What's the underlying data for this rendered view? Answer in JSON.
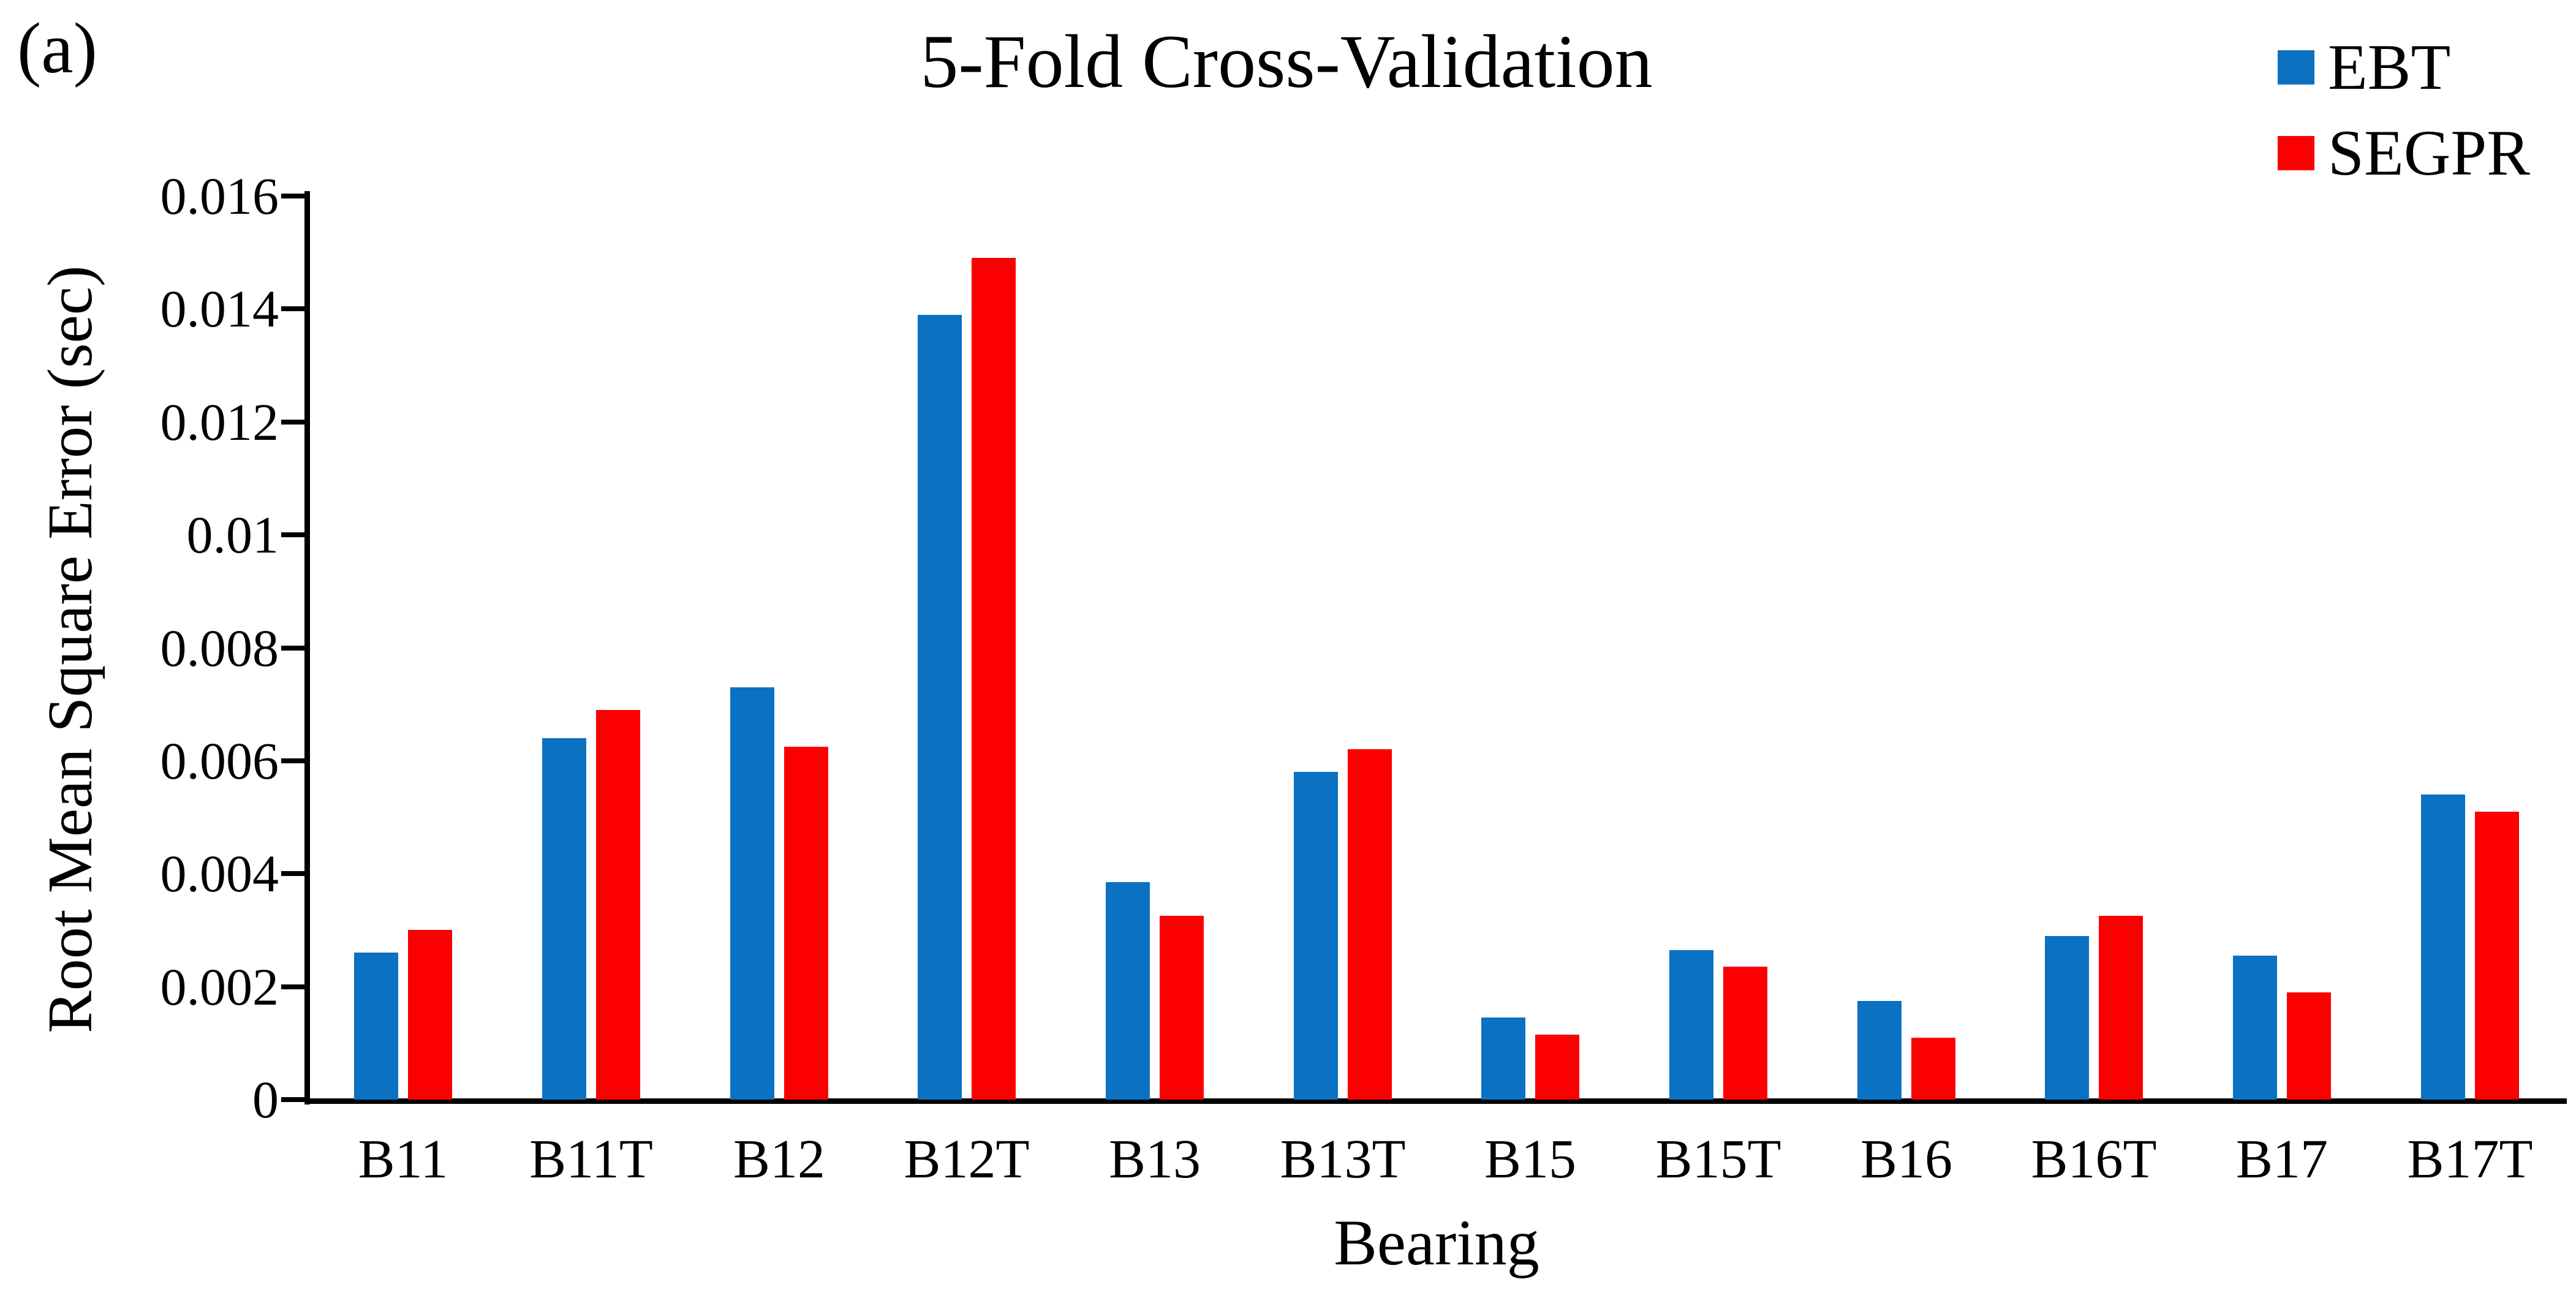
{
  "figure_label": "(a)",
  "chart_data": {
    "type": "bar",
    "title": "5-Fold Cross-Validation",
    "xlabel": "Bearing",
    "ylabel": "Root Mean Square Error (sec)",
    "categories": [
      "B11",
      "B11T",
      "B12",
      "B12T",
      "B13",
      "B13T",
      "B15",
      "B15T",
      "B16",
      "B16T",
      "B17",
      "B17T"
    ],
    "series": [
      {
        "name": "EBT",
        "color": "#0A71C3",
        "values": [
          0.0026,
          0.0064,
          0.0073,
          0.0139,
          0.00385,
          0.0058,
          0.00145,
          0.00265,
          0.00175,
          0.0029,
          0.00255,
          0.0054
        ]
      },
      {
        "name": "SEGPR",
        "color": "#FB0000",
        "values": [
          0.003,
          0.0069,
          0.00625,
          0.0149,
          0.00325,
          0.0062,
          0.00115,
          0.00235,
          0.0011,
          0.00325,
          0.0019,
          0.0051
        ]
      }
    ],
    "ylim": [
      0,
      0.016
    ],
    "yticks": [
      0,
      0.002,
      0.004,
      0.006,
      0.008,
      0.01,
      0.012,
      0.014,
      0.016
    ],
    "ytick_labels": [
      "0",
      "0.002",
      "0.004",
      "0.006",
      "0.008",
      "0.01",
      "0.012",
      "0.014",
      "0.016"
    ],
    "grid": false,
    "legend_position": "top-right",
    "axis_color": "#000000"
  }
}
